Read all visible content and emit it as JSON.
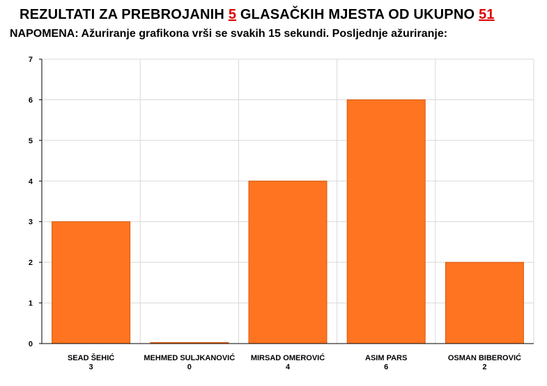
{
  "header": {
    "title_prefix": "REZULTATI ZA PREBROJANIH ",
    "counted": "5",
    "title_middle": " GLASAČKIH MJESTA OD UKUPNO ",
    "total": "51",
    "note": "NAPOMENA: Ažuriranje grafikona vrši se svakih 15 sekundi. Posljednje ažuriranje:"
  },
  "colors": {
    "bar_fill": "#ff7420",
    "bar_stroke": "#d45a10",
    "grid": "#d8d8d8",
    "accent": "#e00000"
  },
  "chart_data": {
    "type": "bar",
    "categories": [
      "SEAD ŠEHIĆ",
      "MEHMED SULJKANOVIĆ",
      "MIRSAD OMEROVIĆ",
      "ASIM PARS",
      "OSMAN BIBEROVIĆ"
    ],
    "values": [
      3,
      0,
      4,
      6,
      2
    ],
    "value_labels": [
      "3",
      "0",
      "4",
      "6",
      "2"
    ],
    "ylim": [
      0,
      7
    ],
    "yticks": [
      "0",
      "1",
      "2",
      "3",
      "4",
      "5",
      "6",
      "7"
    ],
    "grid": true,
    "title": "",
    "xlabel": "",
    "ylabel": ""
  }
}
